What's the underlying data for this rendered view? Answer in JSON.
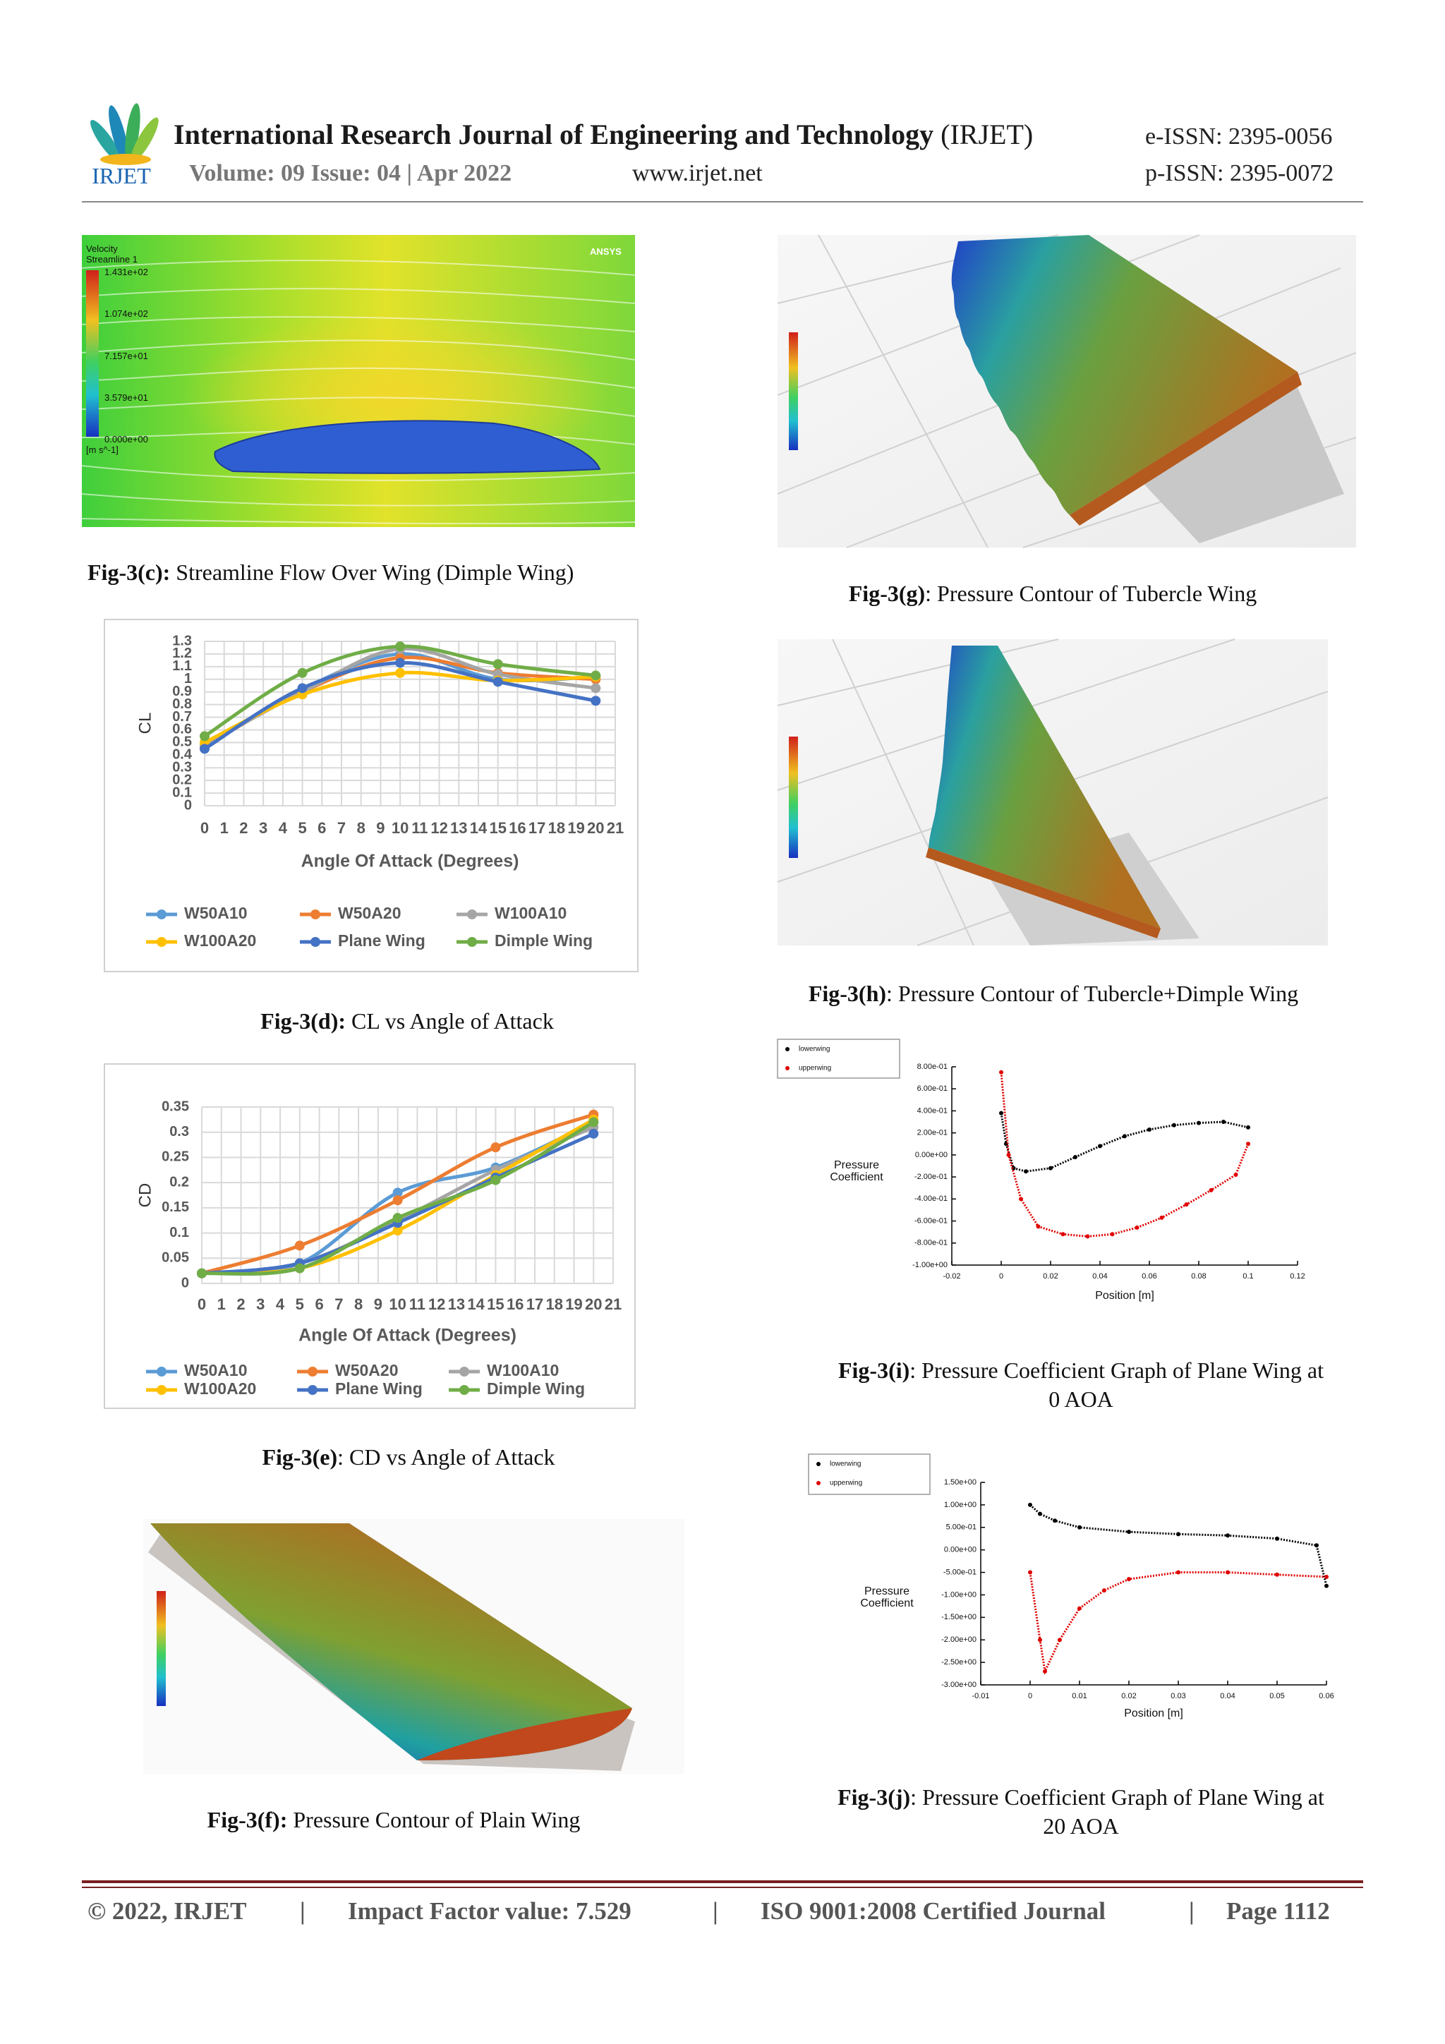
{
  "header": {
    "logo_text": "IRJET",
    "journal": "International Research Journal of Engineering and Technology",
    "abbr": "(IRJET)",
    "volume": "Volume: 09 Issue: 04 | Apr 2022",
    "website": "www.irjet.net",
    "eissn": "e-ISSN: 2395-0056",
    "pissn": "p-ISSN: 2395-0072"
  },
  "figures": {
    "c": {
      "label": "Fig-3(c):",
      "caption": "Streamline Flow Over Wing (Dimple Wing)",
      "image_text": {
        "title": "Velocity",
        "subtitle": "Streamline 1",
        "levels": [
          "1.431e+02",
          "1.074e+02",
          "7.157e+01",
          "3.579e+01",
          "0.000e+00"
        ],
        "unit": "[m s^-1]",
        "brand": "ANSYS"
      }
    },
    "d": {
      "label": "Fig-3(d):",
      "caption": "CL vs Angle of Attack"
    },
    "e": {
      "label": "Fig-3(e)",
      "caption": ": CD  vs Angle of Attack"
    },
    "f": {
      "label": "Fig-3(f):",
      "caption": "Pressure Contour of Plain Wing"
    },
    "g": {
      "label": "Fig-3(g)",
      "caption": ": Pressure Contour of  Tubercle Wing"
    },
    "h": {
      "label": "Fig-3(h)",
      "caption": ": Pressure Contour of Tubercle+Dimple Wing"
    },
    "i": {
      "label": "Fig-3(i)",
      "caption": [
        ": Pressure Coefficient Graph of Plane Wing at",
        "0 AOA"
      ]
    },
    "j": {
      "label": "Fig-3(j)",
      "caption": [
        ": Pressure Coefficient Graph of Plane Wing at",
        "20 AOA"
      ]
    }
  },
  "chart_data": [
    {
      "type": "line",
      "ylabel": "CL",
      "xlabel": "Angle Of Attack (Degrees)",
      "x": [
        0,
        5,
        10,
        15,
        20
      ],
      "xlim": [
        0,
        21
      ],
      "xticks": [
        0,
        1,
        2,
        3,
        4,
        5,
        6,
        7,
        8,
        9,
        10,
        11,
        12,
        13,
        14,
        15,
        16,
        17,
        18,
        19,
        20,
        21
      ],
      "ylim": [
        0,
        1.3
      ],
      "yticks": [
        0,
        0.1,
        0.2,
        0.3,
        0.4,
        0.5,
        0.6,
        0.7,
        0.8,
        0.9,
        1,
        1.1,
        1.2,
        1.3
      ],
      "grid": true,
      "series": [
        {
          "name": "W50A10",
          "color": "#5b9bd5",
          "values": [
            0.47,
            0.92,
            1.2,
            1.0,
            1.02
          ]
        },
        {
          "name": "W50A20",
          "color": "#ed7d31",
          "values": [
            0.47,
            0.9,
            1.17,
            1.05,
            1.0
          ]
        },
        {
          "name": "W100A10",
          "color": "#a5a5a5",
          "values": [
            0.48,
            0.9,
            1.24,
            1.04,
            0.93
          ]
        },
        {
          "name": "W100A20",
          "color": "#ffc000",
          "values": [
            0.5,
            0.88,
            1.05,
            0.99,
            1.02
          ]
        },
        {
          "name": "Plane Wing",
          "color": "#4472c4",
          "values": [
            0.45,
            0.93,
            1.13,
            0.98,
            0.83
          ]
        },
        {
          "name": "Dimple Wing",
          "color": "#70ad47",
          "values": [
            0.55,
            1.05,
            1.26,
            1.12,
            1.03
          ]
        }
      ]
    },
    {
      "type": "line",
      "ylabel": "CD",
      "xlabel": "Angle Of Attack (Degrees)",
      "x": [
        0,
        5,
        10,
        15,
        20
      ],
      "xlim": [
        0,
        21
      ],
      "xticks": [
        0,
        1,
        2,
        3,
        4,
        5,
        6,
        7,
        8,
        9,
        10,
        11,
        12,
        13,
        14,
        15,
        16,
        17,
        18,
        19,
        20,
        21
      ],
      "ylim": [
        0,
        0.35
      ],
      "yticks": [
        0,
        0.05,
        0.1,
        0.15,
        0.2,
        0.25,
        0.3,
        0.35
      ],
      "grid": true,
      "series": [
        {
          "name": "W50A10",
          "color": "#5b9bd5",
          "values": [
            0.02,
            0.04,
            0.18,
            0.23,
            0.32
          ]
        },
        {
          "name": "W50A20",
          "color": "#ed7d31",
          "values": [
            0.02,
            0.075,
            0.165,
            0.27,
            0.335
          ]
        },
        {
          "name": "W100A10",
          "color": "#a5a5a5",
          "values": [
            0.02,
            0.04,
            0.125,
            0.225,
            0.31
          ]
        },
        {
          "name": "W100A20",
          "color": "#ffc000",
          "values": [
            0.02,
            0.03,
            0.105,
            0.215,
            0.325
          ]
        },
        {
          "name": "Plane Wing",
          "color": "#4472c4",
          "values": [
            0.02,
            0.04,
            0.12,
            0.21,
            0.297
          ]
        },
        {
          "name": "Dimple Wing",
          "color": "#70ad47",
          "values": [
            0.02,
            0.03,
            0.13,
            0.205,
            0.32
          ]
        }
      ]
    },
    {
      "type": "scatter",
      "ylabel": [
        "Pressure",
        "Coefficient"
      ],
      "xlabel": "Position [m]",
      "xlim": [
        -0.02,
        0.12
      ],
      "xticks": [
        -0.02,
        0,
        0.02,
        0.04,
        0.06,
        0.08,
        0.1,
        0.12
      ],
      "ylim": [
        -1,
        0.8
      ],
      "yticks": [
        {
          "value": 0.8,
          "label": "8.00e-01"
        },
        {
          "value": 0.6,
          "label": "6.00e-01"
        },
        {
          "value": 0.4,
          "label": "4.00e-01"
        },
        {
          "value": 0.2,
          "label": "2.00e-01"
        },
        {
          "value": 0,
          "label": "0.00e+00"
        },
        {
          "value": -0.2,
          "label": "-2.00e-01"
        },
        {
          "value": -0.4,
          "label": "-4.00e-01"
        },
        {
          "value": -0.6,
          "label": "-6.00e-01"
        },
        {
          "value": -0.8,
          "label": "-8.00e-01"
        },
        {
          "value": -1,
          "label": "-1.00e+00"
        }
      ],
      "series": [
        {
          "name": "lowerwing",
          "color": "#000000",
          "x": [
            0,
            0.002,
            0.005,
            0.01,
            0.02,
            0.03,
            0.04,
            0.05,
            0.06,
            0.07,
            0.08,
            0.09,
            0.1
          ],
          "values": [
            0.38,
            0.1,
            -0.12,
            -0.15,
            -0.12,
            -0.02,
            0.08,
            0.17,
            0.23,
            0.27,
            0.29,
            0.3,
            0.25
          ]
        },
        {
          "name": "upperwing",
          "color": "#e00000",
          "x": [
            0,
            0.003,
            0.008,
            0.015,
            0.025,
            0.035,
            0.045,
            0.055,
            0.065,
            0.075,
            0.085,
            0.095,
            0.1
          ],
          "values": [
            0.75,
            0,
            -0.4,
            -0.65,
            -0.72,
            -0.74,
            -0.72,
            -0.66,
            -0.57,
            -0.45,
            -0.32,
            -0.18,
            0.1
          ]
        }
      ]
    },
    {
      "type": "scatter",
      "ylabel": [
        "Pressure",
        "Coefficient"
      ],
      "xlabel": "Position [m]",
      "xlim": [
        -0.01,
        0.06
      ],
      "xticks": [
        -0.01,
        0,
        0.01,
        0.02,
        0.03,
        0.04,
        0.05,
        0.06
      ],
      "ylim": [
        -3,
        1.5
      ],
      "yticks": [
        {
          "value": 1.5,
          "label": "1.50e+00"
        },
        {
          "value": 1,
          "label": "1.00e+00"
        },
        {
          "value": 0.5,
          "label": "5.00e-01"
        },
        {
          "value": 0,
          "label": "0.00e+00"
        },
        {
          "value": -0.5,
          "label": "-5.00e-01"
        },
        {
          "value": -1,
          "label": "-1.00e+00"
        },
        {
          "value": -1.5,
          "label": "-1.50e+00"
        },
        {
          "value": -2,
          "label": "-2.00e+00"
        },
        {
          "value": -2.5,
          "label": "-2.50e+00"
        },
        {
          "value": -3,
          "label": "-3.00e+00"
        }
      ],
      "series": [
        {
          "name": "lowerwing",
          "color": "#000000",
          "x": [
            0,
            0.002,
            0.005,
            0.01,
            0.02,
            0.03,
            0.04,
            0.05,
            0.058,
            0.06
          ],
          "values": [
            1.0,
            0.8,
            0.65,
            0.5,
            0.4,
            0.35,
            0.32,
            0.25,
            0.1,
            -0.8
          ]
        },
        {
          "name": "upperwing",
          "color": "#e00000",
          "x": [
            0,
            0.002,
            0.003,
            0.006,
            0.01,
            0.015,
            0.02,
            0.03,
            0.04,
            0.05,
            0.06
          ],
          "values": [
            -0.5,
            -2.0,
            -2.7,
            -2.0,
            -1.3,
            -0.9,
            -0.65,
            -0.5,
            -0.5,
            -0.55,
            -0.6
          ]
        }
      ]
    }
  ],
  "footer": {
    "items": [
      "© 2022, IRJET",
      "|",
      "Impact Factor value: 7.529",
      "|",
      "ISO 9001:2008 Certified Journal",
      "|",
      "Page 1112"
    ]
  }
}
